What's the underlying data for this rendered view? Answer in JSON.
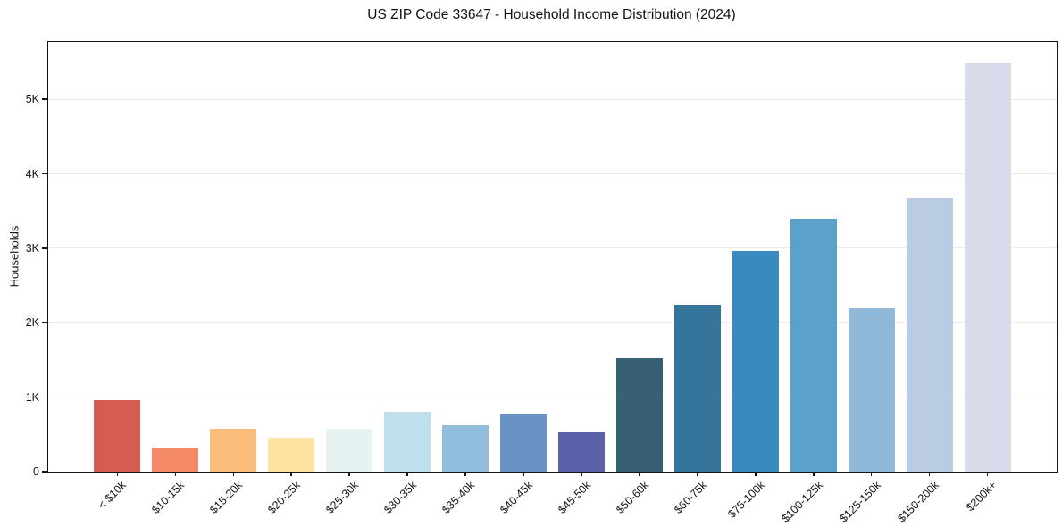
{
  "chart_data": {
    "type": "bar",
    "title": "US ZIP Code 33647 - Household Income Distribution (2024)",
    "xlabel": "",
    "ylabel": "Households",
    "categories": [
      "< $10k",
      "$10-15k",
      "$15-20k",
      "$20-25k",
      "$25-30k",
      "$30-35k",
      "$35-40k",
      "$40-45k",
      "$45-50k",
      "$50-60k",
      "$60-75k",
      "$75-100k",
      "$100-125k",
      "$125-150k",
      "$150-200k",
      "$200k+"
    ],
    "values": [
      960,
      330,
      570,
      460,
      580,
      800,
      625,
      770,
      530,
      1520,
      2230,
      2960,
      3390,
      2200,
      3670,
      5500
    ],
    "bar_colors": [
      "#d65c52",
      "#f58a68",
      "#fbbd7c",
      "#fde3a0",
      "#e7f2f3",
      "#bfdfec",
      "#92bedd",
      "#6b92c5",
      "#5a61a9",
      "#386075",
      "#36759b",
      "#3a8abf",
      "#5aa2ca",
      "#90b8d8",
      "#b9cce3",
      "#d8dbe9"
    ],
    "yticks": {
      "values": [
        0,
        1000,
        2000,
        3000,
        4000,
        5000
      ],
      "labels": [
        "0",
        "1K",
        "2K",
        "3K",
        "4K",
        "5K"
      ]
    },
    "ylim": [
      0,
      5770
    ],
    "grid": "horizontal",
    "legend": "none",
    "background": "#ffffff",
    "axis_color": "#141414",
    "gridline_color": "#ebebeb"
  }
}
